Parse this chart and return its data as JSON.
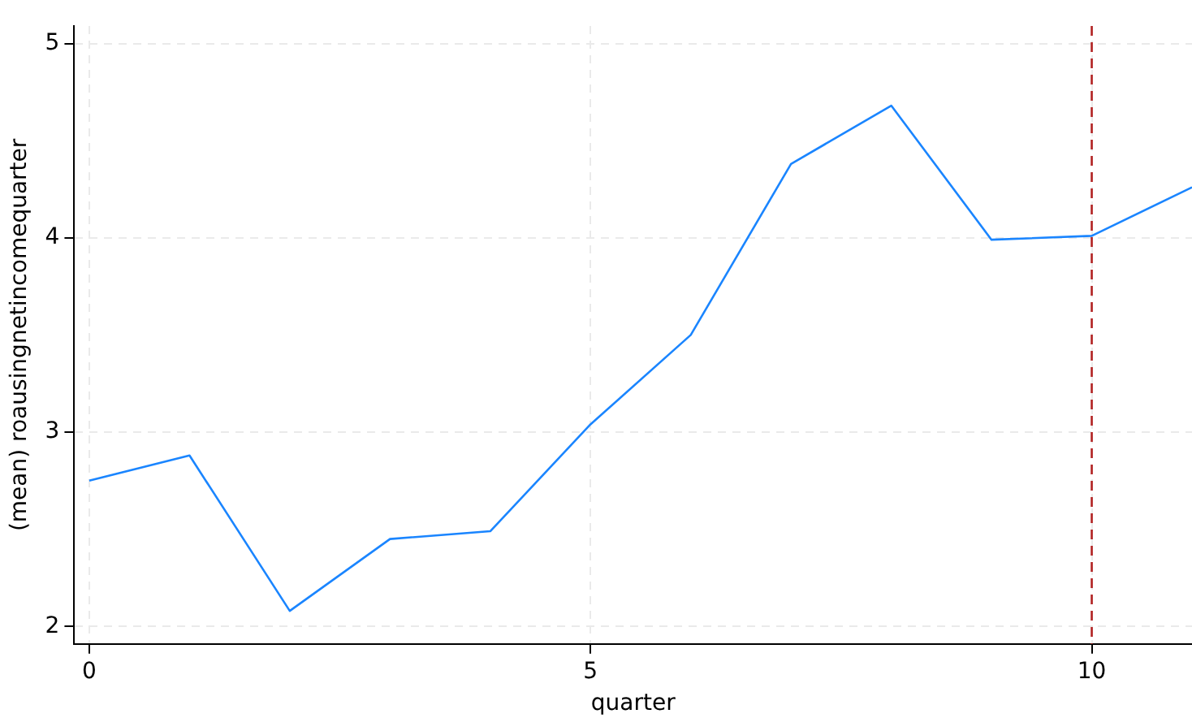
{
  "chart_data": {
    "type": "line",
    "xlabel": "quarter",
    "ylabel": "(mean) roausingnetincomequarter",
    "x": [
      0,
      1,
      2,
      3,
      4,
      5,
      6,
      7,
      8,
      9,
      10,
      11
    ],
    "series": [
      {
        "color": "#1a85ff",
        "values": [
          2.75,
          2.88,
          2.08,
          2.45,
          2.49,
          3.04,
          3.5,
          4.38,
          4.68,
          3.99,
          4.01,
          4.26
        ]
      }
    ],
    "xlim": [
      -0.15,
      11
    ],
    "xticks": [
      0,
      5,
      10
    ],
    "ylim": [
      1.91,
      5.09
    ],
    "yticks": [
      2,
      3,
      4,
      5
    ],
    "grid": true,
    "legend": false,
    "marker": "none",
    "line_style": "solid",
    "ref_lines": [
      {
        "axis": "x",
        "value": 10,
        "color": "#b22222",
        "line_style": "dashed"
      }
    ]
  }
}
